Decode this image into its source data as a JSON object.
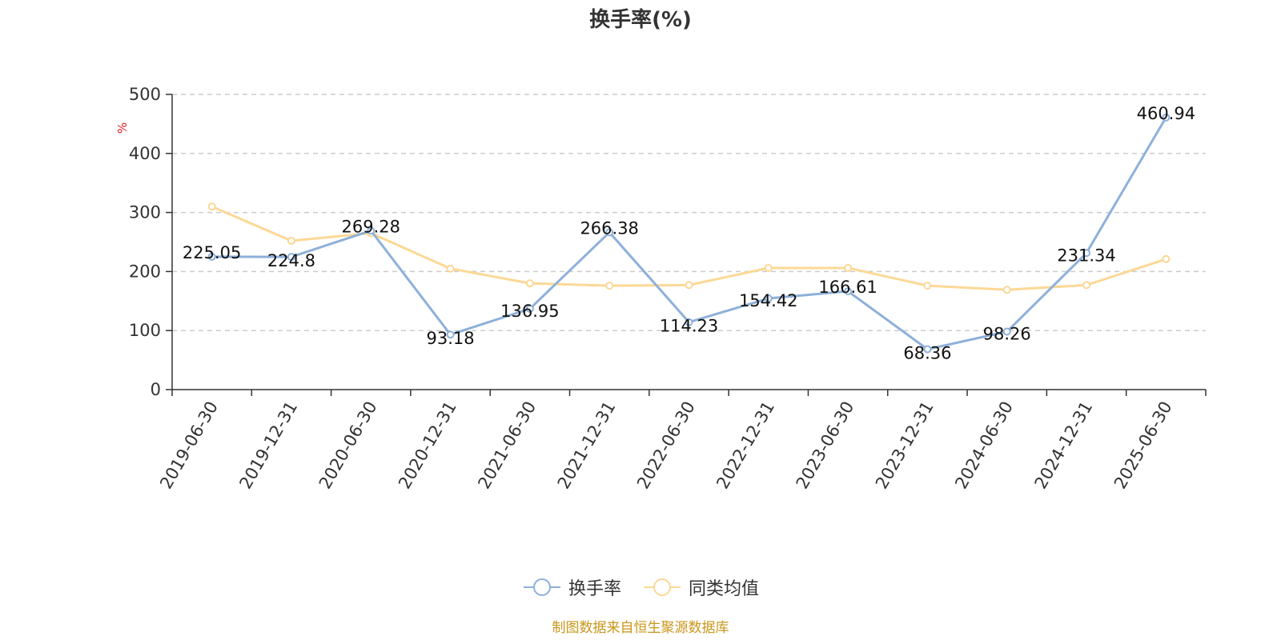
{
  "chart_data": {
    "type": "line",
    "title": "换手率(%)",
    "ylabel": "%",
    "ylim": [
      0,
      500
    ],
    "yticks": [
      0,
      100,
      200,
      300,
      400,
      500
    ],
    "grid": true,
    "legend_position": "bottom-center",
    "categories": [
      "2019-06-30",
      "2019-12-31",
      "2020-06-30",
      "2020-12-31",
      "2021-06-30",
      "2021-12-31",
      "2022-06-30",
      "2022-12-31",
      "2023-06-30",
      "2023-12-31",
      "2024-06-30",
      "2024-12-31",
      "2025-06-30"
    ],
    "series": [
      {
        "name": "换手率",
        "color": "#8eb0da",
        "values": [
          225.05,
          224.8,
          269.28,
          93.18,
          136.95,
          266.38,
          114.23,
          154.42,
          166.61,
          68.36,
          98.26,
          231.34,
          460.94
        ],
        "data_labels": [
          "225.05",
          "224.8",
          "269.28",
          "93.18",
          "136.95",
          "266.38",
          "114.23",
          "154.42",
          "166.61",
          "68.36",
          "98.26",
          "231.34",
          "460.94"
        ]
      },
      {
        "name": "同类均值",
        "color": "#fcd896",
        "values": [
          310,
          252,
          265,
          205,
          180,
          176,
          177,
          206,
          206,
          176,
          169,
          177,
          221
        ]
      }
    ]
  },
  "source_note": "制图数据来自恒生聚源数据库",
  "colors": {
    "axis": "#333333",
    "grid": "#cccccc",
    "ylabel": "#e02020",
    "source": "#c9961a"
  }
}
